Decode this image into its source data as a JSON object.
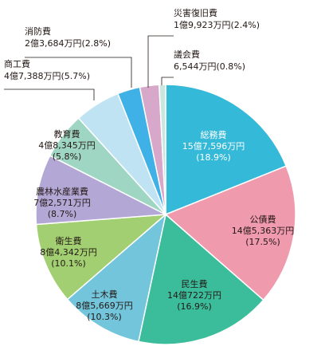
{
  "chart_data": {
    "type": "pie",
    "start_angle_deg": 90,
    "direction": "clockwise",
    "slices": [
      {
        "name": "総務費",
        "amount": "15億7,596万円",
        "percent_text": "(18.9%)",
        "value": 18.9,
        "color": "#35b9d8",
        "text_color": "#ffffff"
      },
      {
        "name": "公債費",
        "amount": "14億5,363万円",
        "percent_text": "(17.5%)",
        "value": 17.5,
        "color": "#f09aae",
        "text_color": "#231815"
      },
      {
        "name": "民生費",
        "amount": "14億722万円",
        "percent_text": "(16.9%)",
        "value": 16.9,
        "color": "#3bbd9b",
        "text_color": "#231815"
      },
      {
        "name": "土木費",
        "amount": "8億5,669万円",
        "percent_text": "(10.3%)",
        "value": 10.3,
        "color": "#72c5db",
        "text_color": "#231815"
      },
      {
        "name": "衛生費",
        "amount": "8億4,342万円",
        "percent_text": "(10.1%)",
        "value": 10.1,
        "color": "#a2cf72",
        "text_color": "#231815"
      },
      {
        "name": "農林水産業費",
        "amount": "7億2,571万円",
        "percent_text": "(8.7%)",
        "value": 8.7,
        "color": "#b3a8d5",
        "text_color": "#231815"
      },
      {
        "name": "教育費",
        "amount": "4億8,345万円",
        "percent_text": "(5.8%)",
        "value": 5.8,
        "color": "#9fd6c3",
        "text_color": "#231815"
      },
      {
        "name": "商工費",
        "amount": "4億7,388万円",
        "percent_text": "(5.7%)",
        "value": 5.7,
        "color": "#bfe3f3",
        "text_color": "#231815"
      },
      {
        "name": "消防費",
        "amount": "2億3,684万円",
        "percent_text": "(2.8%)",
        "value": 2.8,
        "color": "#3fb1e6",
        "text_color": "#231815"
      },
      {
        "name": "災害復旧費",
        "amount": "1億9,923万円",
        "percent_text": "(2.4%)",
        "value": 2.4,
        "color": "#d7a8c9",
        "text_color": "#231815"
      },
      {
        "name": "議会費",
        "amount": "6,544万円",
        "percent_text": "(0.8%)",
        "value": 0.8,
        "color": "#c9e6df",
        "text_color": "#231815"
      }
    ]
  }
}
